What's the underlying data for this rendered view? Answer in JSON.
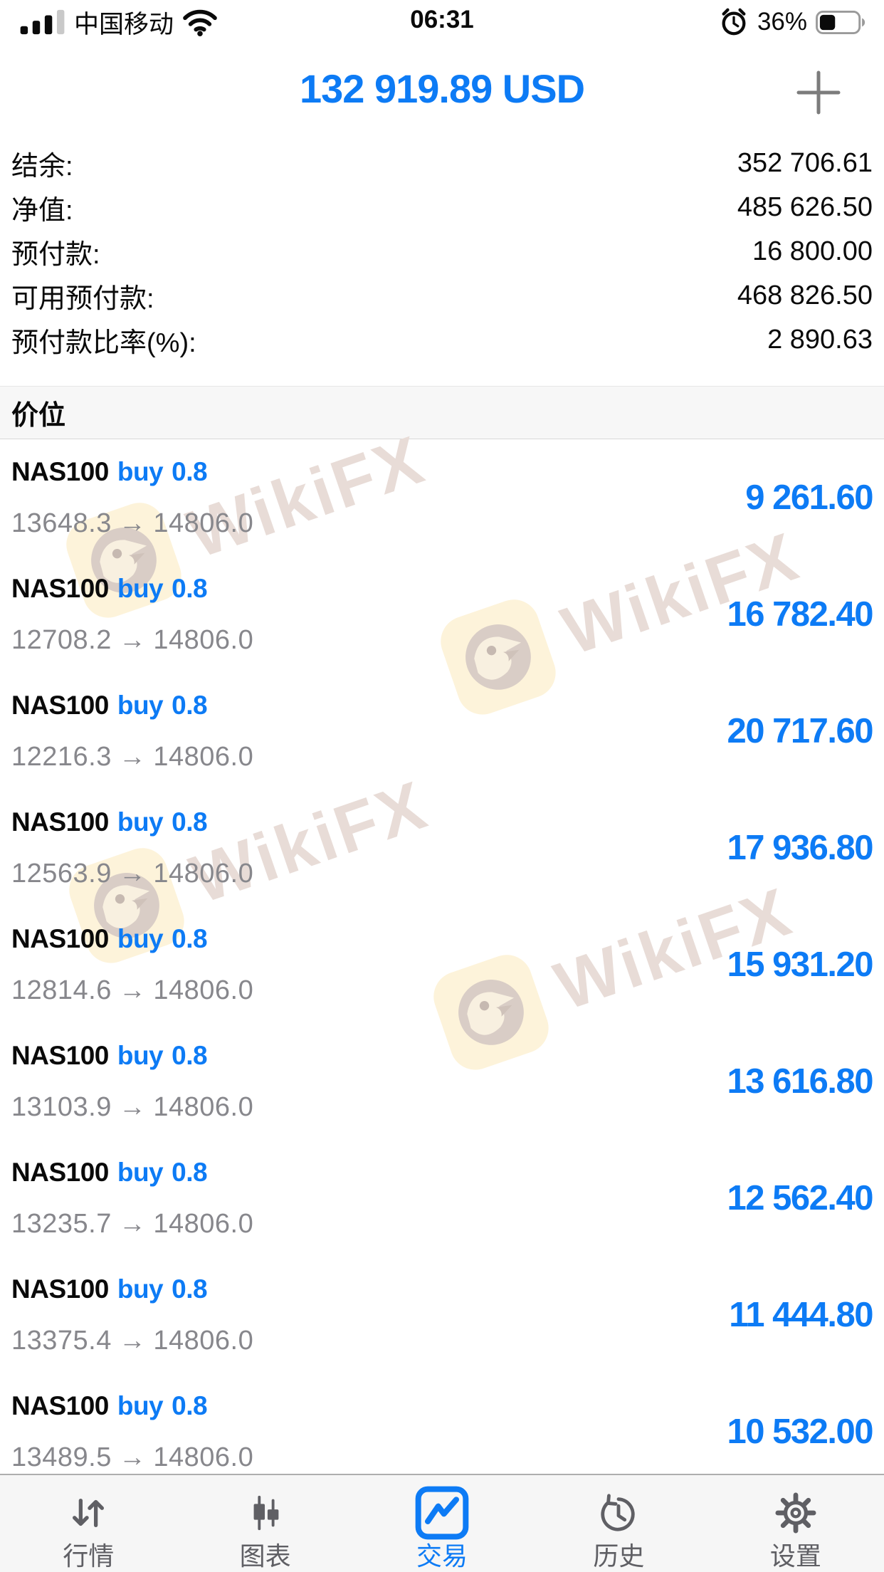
{
  "status_bar": {
    "carrier": "中国移动",
    "time": "06:31",
    "battery_percent": "36%",
    "icons": [
      "cellular-signal-icon",
      "wifi-icon",
      "alarm-clock-icon",
      "battery-icon"
    ]
  },
  "header": {
    "balance": "132 919.89 USD",
    "add_button_icon": "plus"
  },
  "summary": {
    "rows": [
      {
        "label": "结余:",
        "value": "352 706.61"
      },
      {
        "label": "净值:",
        "value": "485 626.50"
      },
      {
        "label": "预付款:",
        "value": "16 800.00"
      },
      {
        "label": "可用预付款:",
        "value": "468 826.50"
      },
      {
        "label": "预付款比率(%):",
        "value": "2 890.63"
      }
    ]
  },
  "section": {
    "title": "价位"
  },
  "positions": [
    {
      "symbol": "NAS100",
      "side": "buy",
      "volume": "0.8",
      "open": "13648.3",
      "arrow": "→",
      "current": "14806.0",
      "profit": "9 261.60"
    },
    {
      "symbol": "NAS100",
      "side": "buy",
      "volume": "0.8",
      "open": "12708.2",
      "arrow": "→",
      "current": "14806.0",
      "profit": "16 782.40"
    },
    {
      "symbol": "NAS100",
      "side": "buy",
      "volume": "0.8",
      "open": "12216.3",
      "arrow": "→",
      "current": "14806.0",
      "profit": "20 717.60"
    },
    {
      "symbol": "NAS100",
      "side": "buy",
      "volume": "0.8",
      "open": "12563.9",
      "arrow": "→",
      "current": "14806.0",
      "profit": "17 936.80"
    },
    {
      "symbol": "NAS100",
      "side": "buy",
      "volume": "0.8",
      "open": "12814.6",
      "arrow": "→",
      "current": "14806.0",
      "profit": "15 931.20"
    },
    {
      "symbol": "NAS100",
      "side": "buy",
      "volume": "0.8",
      "open": "13103.9",
      "arrow": "→",
      "current": "14806.0",
      "profit": "13 616.80"
    },
    {
      "symbol": "NAS100",
      "side": "buy",
      "volume": "0.8",
      "open": "13235.7",
      "arrow": "→",
      "current": "14806.0",
      "profit": "12 562.40"
    },
    {
      "symbol": "NAS100",
      "side": "buy",
      "volume": "0.8",
      "open": "13375.4",
      "arrow": "→",
      "current": "14806.0",
      "profit": "11 444.80"
    },
    {
      "symbol": "NAS100",
      "side": "buy",
      "volume": "0.8",
      "open": "13489.5",
      "arrow": "→",
      "current": "14806.0",
      "profit": "10 532.00"
    }
  ],
  "watermark": {
    "text": "WikiFX",
    "icon": "wikifx-eagle-logo"
  },
  "tab_bar": {
    "tabs": [
      {
        "label": "行情",
        "icon": "quotes-arrows-icon",
        "active": false
      },
      {
        "label": "图表",
        "icon": "candlestick-chart-icon",
        "active": false
      },
      {
        "label": "交易",
        "icon": "trade-chart-icon",
        "active": true
      },
      {
        "label": "历史",
        "icon": "history-clock-icon",
        "active": false
      },
      {
        "label": "设置",
        "icon": "settings-gear-icon",
        "active": false
      }
    ]
  },
  "colors": {
    "accent_blue": "#0d7bf5",
    "price_gray": "#87878c",
    "watermark_text": "#e8dcd7",
    "watermark_badge": "#fdf3da",
    "tab_inactive": "#5f5f64"
  }
}
